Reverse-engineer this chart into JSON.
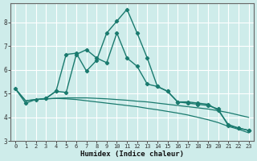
{
  "xlabel": "Humidex (Indice chaleur)",
  "background_color": "#ceecea",
  "grid_color": "#ffffff",
  "line_color": "#1a7a6e",
  "xlim_min": -0.5,
  "xlim_max": 23.5,
  "ylim_min": 3.0,
  "ylim_max": 8.8,
  "yticks": [
    3,
    4,
    5,
    6,
    7,
    8
  ],
  "xticks": [
    0,
    1,
    2,
    3,
    4,
    5,
    6,
    7,
    8,
    9,
    10,
    11,
    12,
    13,
    14,
    15,
    16,
    17,
    18,
    19,
    20,
    21,
    22,
    23
  ],
  "curve1_x": [
    0,
    1,
    2,
    3,
    4,
    5,
    6,
    7,
    8,
    9,
    10,
    11,
    12,
    13,
    14,
    15,
    16,
    17,
    18,
    19,
    20,
    21,
    22,
    23
  ],
  "curve1_y": [
    5.2,
    4.6,
    4.75,
    4.8,
    5.1,
    6.65,
    6.7,
    5.95,
    6.4,
    7.55,
    8.05,
    8.55,
    7.55,
    6.5,
    5.3,
    5.1,
    4.65,
    4.6,
    4.55,
    4.5,
    4.35,
    3.65,
    3.55,
    3.45
  ],
  "curve2_x": [
    3,
    4,
    5,
    6,
    7,
    8,
    9,
    10,
    11,
    12,
    13,
    14,
    15,
    16,
    17,
    18,
    19,
    20,
    21,
    22,
    23
  ],
  "curve2_y": [
    4.8,
    5.1,
    5.05,
    6.65,
    6.85,
    6.5,
    6.3,
    7.55,
    6.5,
    6.15,
    5.4,
    5.3,
    5.1,
    4.65,
    4.65,
    4.6,
    4.55,
    4.3,
    3.7,
    3.55,
    3.45
  ],
  "curve3_x": [
    0,
    1,
    2,
    3,
    4,
    5,
    6,
    7,
    8,
    9,
    10,
    11,
    12,
    13,
    14,
    15,
    16,
    17,
    18,
    19,
    20,
    21,
    22,
    23
  ],
  "curve3_y": [
    5.2,
    4.7,
    4.75,
    4.78,
    4.8,
    4.82,
    4.82,
    4.82,
    4.8,
    4.78,
    4.75,
    4.72,
    4.68,
    4.65,
    4.6,
    4.55,
    4.5,
    4.45,
    4.4,
    4.35,
    4.28,
    4.2,
    4.1,
    4.0
  ],
  "curve4_x": [
    0,
    1,
    2,
    3,
    4,
    5,
    6,
    7,
    8,
    9,
    10,
    11,
    12,
    13,
    14,
    15,
    16,
    17,
    18,
    19,
    20,
    21,
    22,
    23
  ],
  "curve4_y": [
    5.2,
    4.7,
    4.75,
    4.78,
    4.8,
    4.78,
    4.75,
    4.7,
    4.65,
    4.6,
    4.55,
    4.5,
    4.45,
    4.38,
    4.32,
    4.25,
    4.18,
    4.1,
    4.0,
    3.9,
    3.78,
    3.62,
    3.5,
    3.35
  ]
}
